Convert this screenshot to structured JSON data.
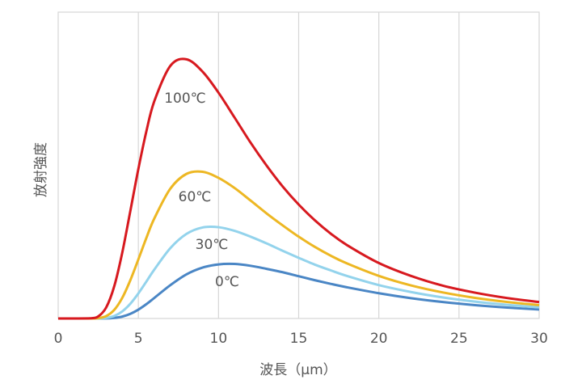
{
  "chart_data": {
    "type": "line",
    "title": "",
    "xlabel": "波長（μm）",
    "ylabel": "放射強度",
    "xlim": [
      0,
      30
    ],
    "ylim": [
      0,
      100
    ],
    "xticks": [
      "0",
      "5",
      "10",
      "15",
      "20",
      "25",
      "30"
    ],
    "xtick_values": [
      0,
      5,
      10,
      15,
      20,
      25,
      30
    ],
    "grid": "vertical",
    "legend": "inline labels",
    "x": [
      0,
      1,
      2,
      2.5,
      3,
      3.5,
      4,
      4.5,
      5,
      5.5,
      6,
      7,
      8,
      9,
      10,
      11,
      12,
      13,
      14,
      15,
      16,
      17,
      18,
      20,
      22,
      24,
      26,
      28,
      30
    ],
    "series": [
      {
        "name": "100℃",
        "color": "#d7191f",
        "values": [
          0,
          0,
          0.05,
          0.7,
          3.66,
          10.6,
          21.6,
          35.1,
          48.8,
          61.1,
          71.0,
          82.5,
          84.6,
          80.6,
          73.7,
          65.6,
          57.4,
          49.9,
          43.1,
          37.2,
          32.1,
          27.7,
          24.0,
          18.1,
          13.9,
          10.7,
          8.43,
          6.68,
          5.36
        ]
      },
      {
        "name": "60℃",
        "color": "#edb723",
        "values": [
          0,
          0,
          0,
          0.11,
          0.79,
          2.83,
          6.78,
          12.5,
          19.3,
          26.3,
          32.7,
          42.4,
          47.2,
          47.9,
          45.9,
          42.6,
          38.5,
          34.3,
          30.4,
          26.7,
          23.4,
          20.5,
          18.0,
          13.9,
          10.8,
          8.49,
          6.73,
          5.39,
          4.36
        ]
      },
      {
        "name": "30℃",
        "color": "#93d3ec",
        "values": [
          0,
          0,
          0,
          0.02,
          0.19,
          0.83,
          2.33,
          4.83,
          8.19,
          12.05,
          16.0,
          23.0,
          27.6,
          29.7,
          29.8,
          28.6,
          26.7,
          24.5,
          22.1,
          19.8,
          17.6,
          15.7,
          13.9,
          10.9,
          8.65,
          6.87,
          5.51,
          4.46,
          3.63
        ]
      },
      {
        "name": "0℃",
        "color": "#4a86c5",
        "values": [
          0,
          0,
          0,
          0,
          0.03,
          0.19,
          0.63,
          1.52,
          2.89,
          4.68,
          6.73,
          10.9,
          14.4,
          16.6,
          17.65,
          17.8,
          17.2,
          16.2,
          15.1,
          13.8,
          12.5,
          11.3,
          10.2,
          8.25,
          6.64,
          5.37,
          4.36,
          3.56,
          2.93
        ]
      }
    ]
  }
}
